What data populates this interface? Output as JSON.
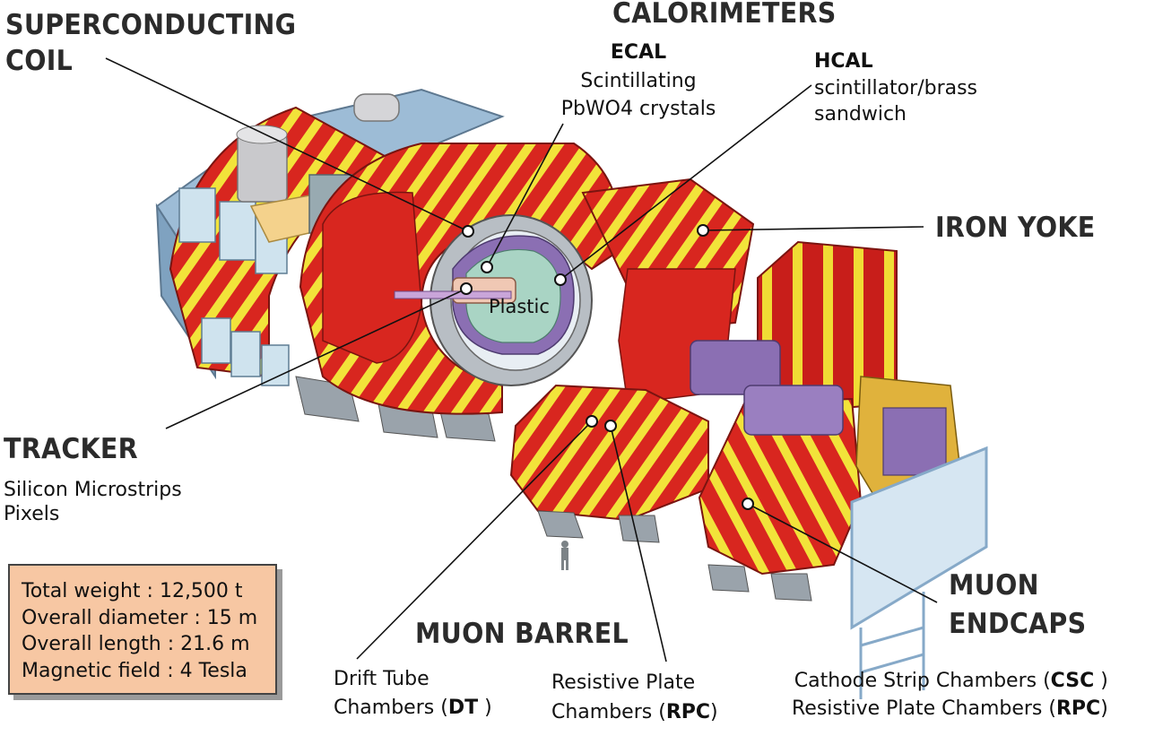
{
  "labels": {
    "calorimeters": "CALORIMETERS",
    "superconducting_coil": [
      "SUPERCONDUCTING",
      "COIL"
    ],
    "ecal": {
      "title": "ECAL",
      "lines": [
        "Scintillating",
        "PbWO4 crystals"
      ]
    },
    "hcal": {
      "title": "HCAL",
      "lines": [
        "scintillator/brass",
        "sandwich"
      ]
    },
    "iron_yoke": "IRON YOKE",
    "plastic": "Plastic",
    "tracker": {
      "title": "TRACKER",
      "lines": [
        "Silicon Microstrips",
        "Pixels"
      ]
    },
    "muon_barrel": "MUON BARREL",
    "muon_endcaps": [
      "MUON",
      "ENDCAPS"
    ],
    "drift_tube": {
      "line1": "Drift Tube",
      "line2": "Chambers (",
      "abbr": "DT",
      "close": " )"
    },
    "rpc_barrel": {
      "line1": "Resistive Plate",
      "line2": "Chambers (",
      "abbr": "RPC",
      "close": ")"
    },
    "endcap_chambers": {
      "csc_text": "Cathode Strip Chambers (",
      "csc_abbr": "CSC",
      "csc_close": " )",
      "rpc_text": "Resistive Plate Chambers (",
      "rpc_abbr": "RPC",
      "rpc_close": ")"
    }
  },
  "specs": [
    "Total weight : 12,500 t",
    "Overall diameter : 15 m",
    "Overall length : 21.6 m",
    "Magnetic field : 4 Tesla"
  ],
  "colors": {
    "red": "#d8261f",
    "yellow": "#f2e33a",
    "steel_blue": "#a9c7e0",
    "box_fill": "#f7c7a3"
  }
}
